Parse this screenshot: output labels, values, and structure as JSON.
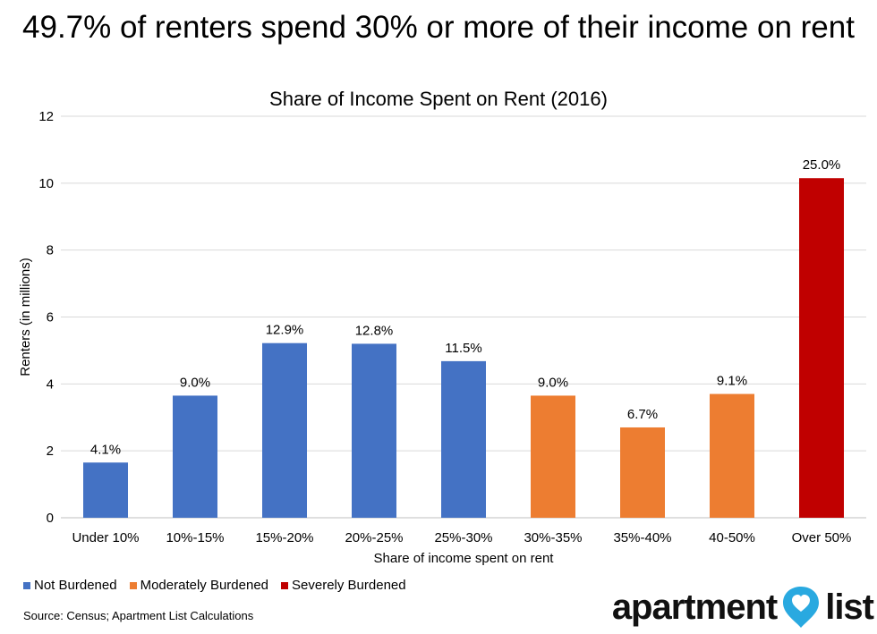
{
  "title": "49.7% of renters spend 30% or more of their income on rent",
  "subtitle": "Share of Income Spent on Rent (2016)",
  "source": "Source: Census; Apartment List Calculations",
  "logo": {
    "word1": "apartment",
    "word2": "list"
  },
  "legend": [
    {
      "label": "Not Burdened",
      "color": "#4472C4"
    },
    {
      "label": "Moderately Burdened",
      "color": "#ED7D31"
    },
    {
      "label": "Severely Burdened",
      "color": "#C00000"
    }
  ],
  "chart_data": {
    "type": "bar",
    "title": "Share of Income Spent on Rent (2016)",
    "xlabel": "Share of income spent on rent",
    "ylabel": "Renters (in millions)",
    "ylim": [
      0,
      12
    ],
    "yticks": [
      0,
      2,
      4,
      6,
      8,
      10,
      12
    ],
    "grid": true,
    "legend_position": "bottom-left",
    "categories": [
      "Under 10%",
      "10%-15%",
      "15%-20%",
      "20%-25%",
      "25%-30%",
      "30%-35%",
      "35%-40%",
      "40-50%",
      "Over 50%"
    ],
    "values": [
      1.65,
      3.65,
      5.22,
      5.2,
      4.68,
      3.65,
      2.7,
      3.7,
      10.15
    ],
    "data_labels": [
      "4.1%",
      "9.0%",
      "12.9%",
      "12.8%",
      "11.5%",
      "9.0%",
      "6.7%",
      "9.1%",
      "25.0%"
    ],
    "groups": [
      "Not Burdened",
      "Not Burdened",
      "Not Burdened",
      "Not Burdened",
      "Not Burdened",
      "Moderately Burdened",
      "Moderately Burdened",
      "Moderately Burdened",
      "Severely Burdened"
    ],
    "colors": [
      "#4472C4",
      "#4472C4",
      "#4472C4",
      "#4472C4",
      "#4472C4",
      "#ED7D31",
      "#ED7D31",
      "#ED7D31",
      "#C00000"
    ]
  }
}
